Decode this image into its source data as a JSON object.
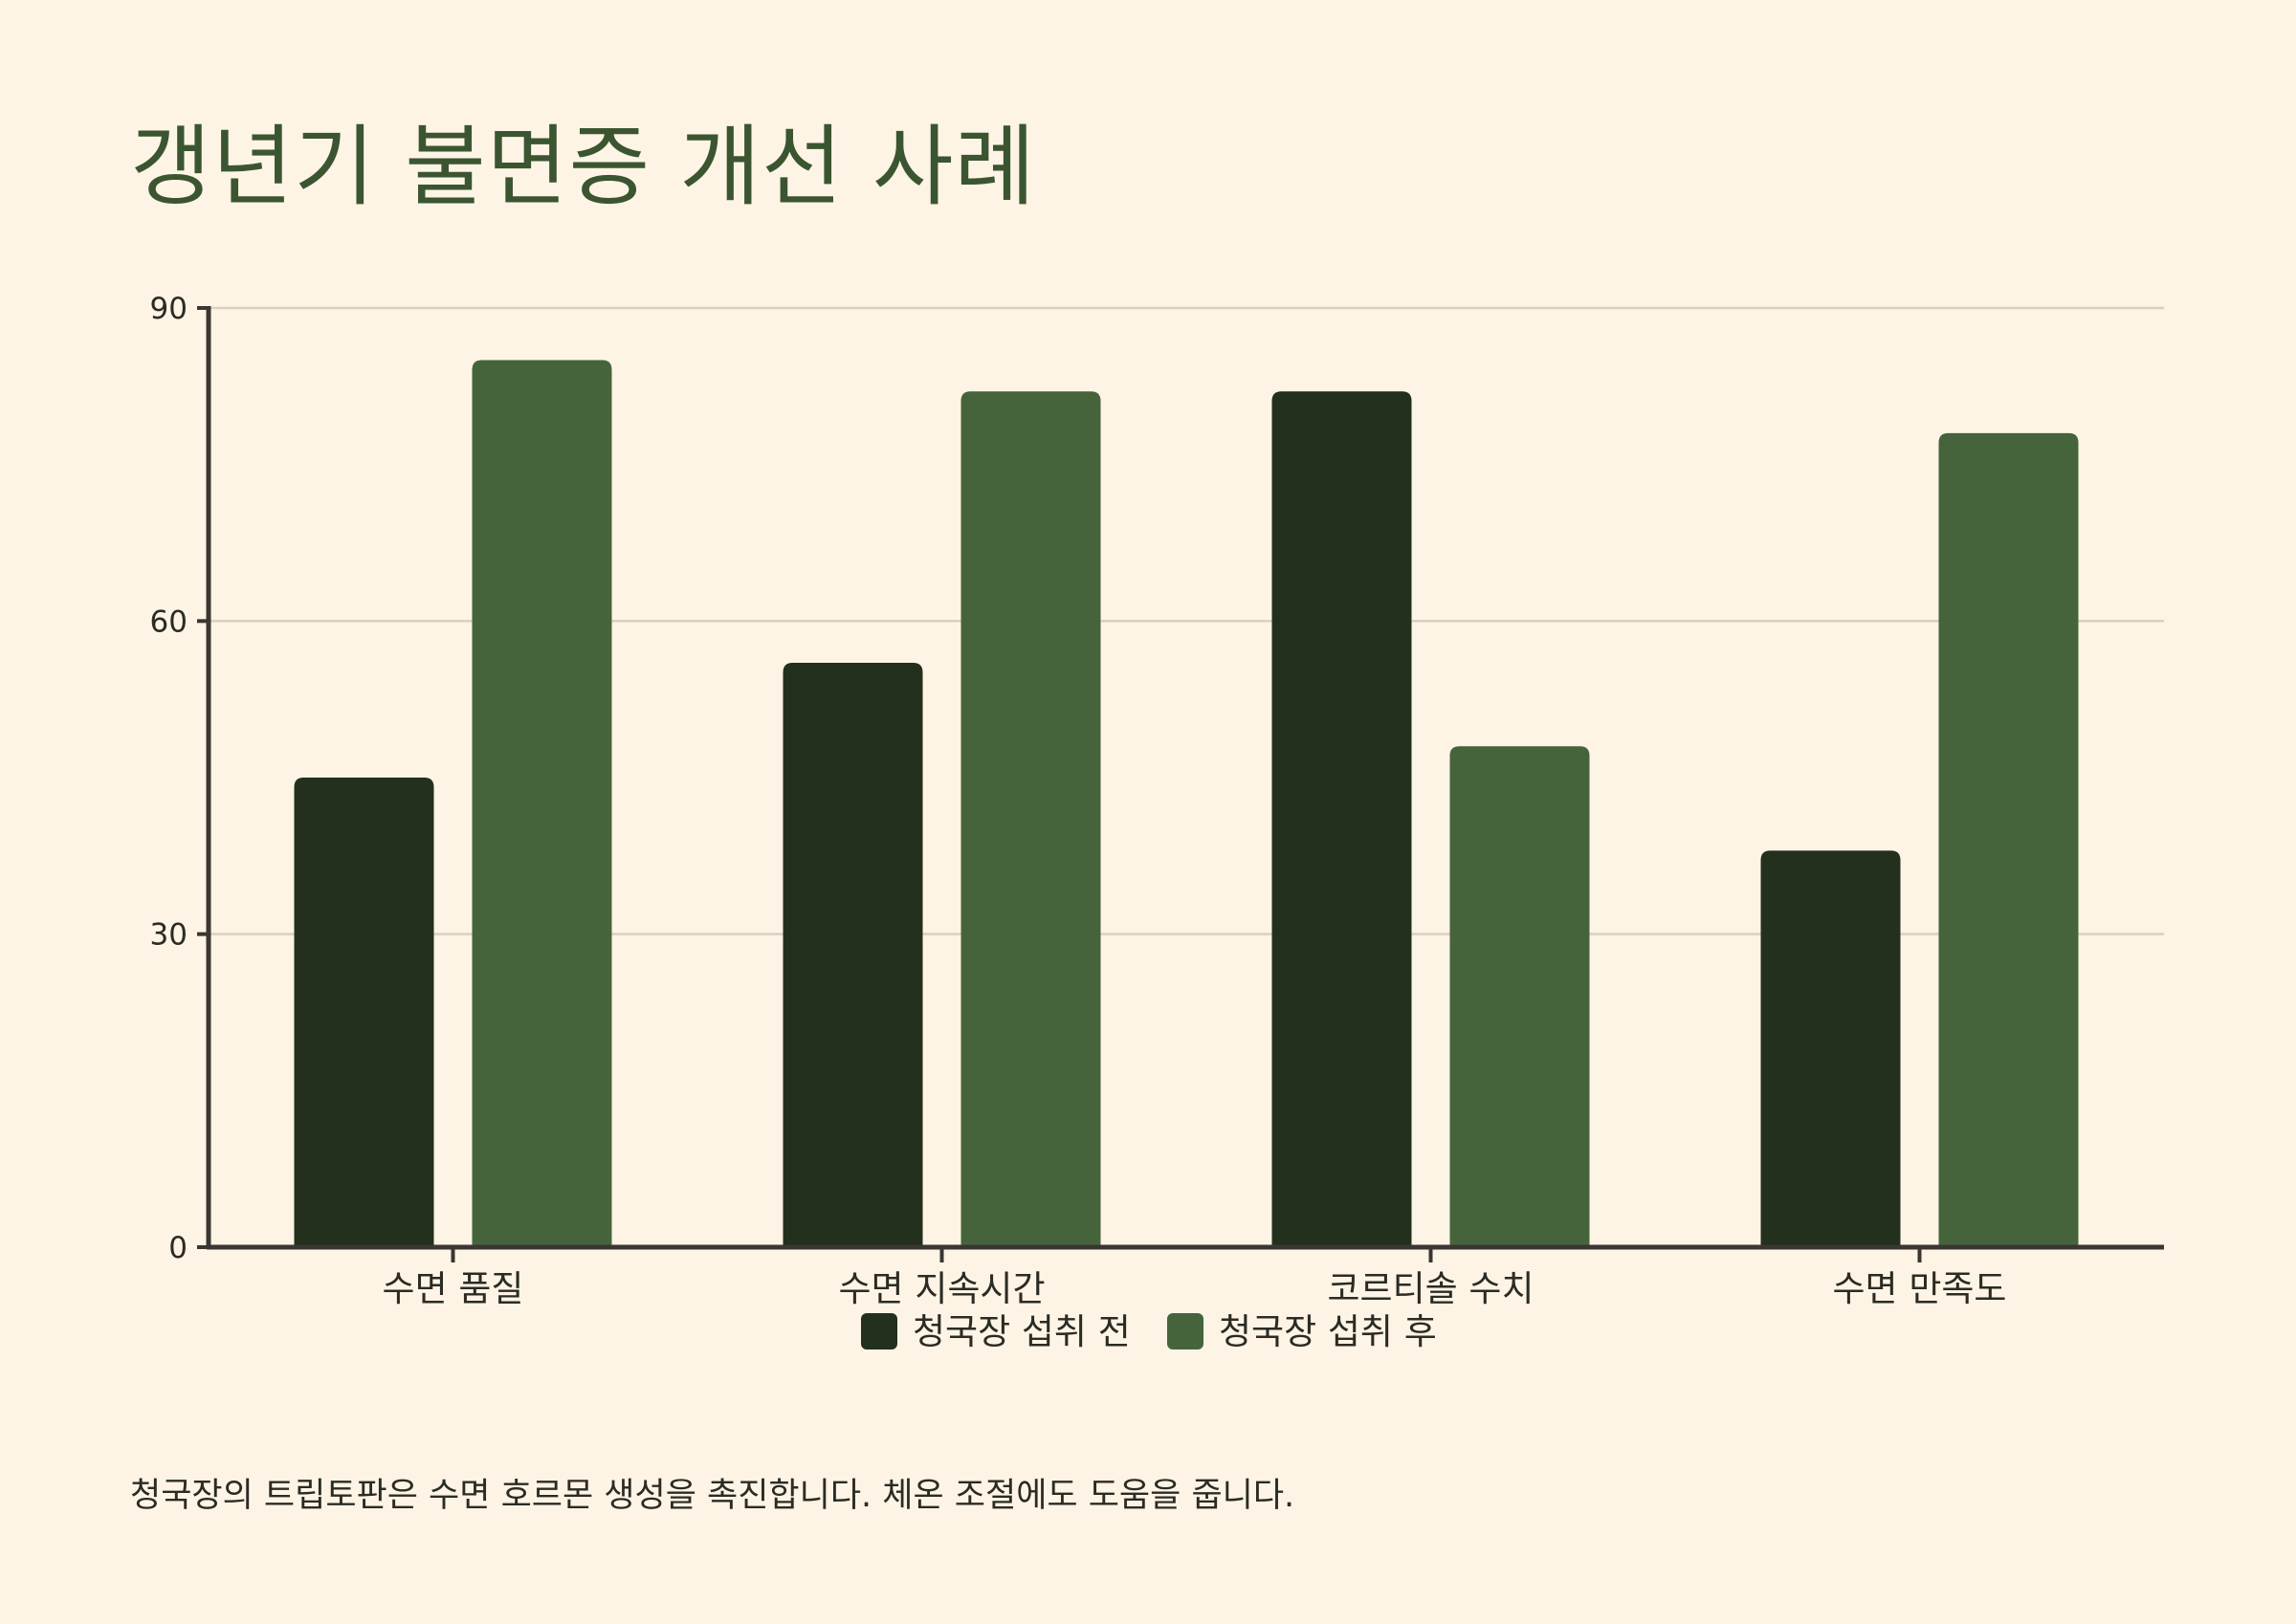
{
  "title": "갱년기 불면증 개선 사례",
  "footnote": "청국장의 트립토판은 수면 호르몬 생성을 촉진합니다. 체온 조절에도 도움을 줍니다.",
  "colors": {
    "background": "#fdf4e5",
    "before": "#22301d",
    "after": "#46643b",
    "axis": "#3a3632",
    "grid": "#d9d0c1",
    "text": "#2b2b24",
    "title": "#3b5531"
  },
  "chart_data": {
    "type": "bar",
    "categories": [
      "수면 품질",
      "수면 지속시간",
      "코르티솔 수치",
      "수면 만족도"
    ],
    "series": [
      {
        "name": "청국장 섭취 전",
        "values": [
          45,
          56,
          82,
          38
        ]
      },
      {
        "name": "청국장 섭취 후",
        "values": [
          85,
          82,
          48,
          78
        ]
      }
    ],
    "ylim": [
      0,
      90
    ],
    "yticks": [
      0,
      30,
      60,
      90
    ],
    "grid": true,
    "legend_position": "bottom-center"
  }
}
